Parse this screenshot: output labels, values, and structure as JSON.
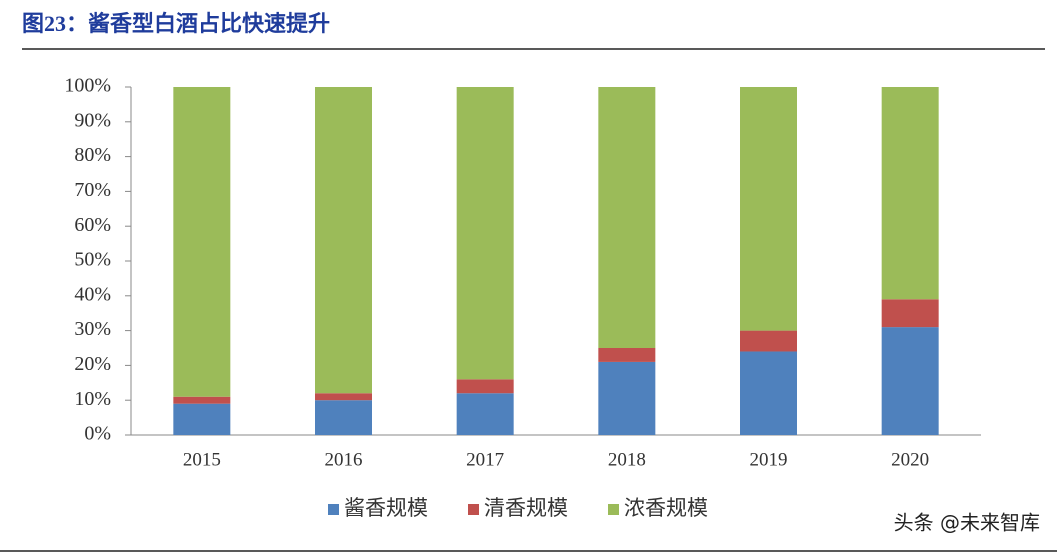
{
  "chart_data": {
    "type": "stacked_bar",
    "title": "图23：酱香型白酒占比快速提升",
    "categories": [
      "2015",
      "2016",
      "2017",
      "2018",
      "2019",
      "2020"
    ],
    "series": [
      {
        "name": "酱香规模",
        "color": "#4f81bd",
        "values": [
          9,
          10,
          12,
          21,
          24,
          31
        ]
      },
      {
        "name": "清香规模",
        "color": "#c0504d",
        "values": [
          2,
          2,
          4,
          4,
          6,
          8
        ]
      },
      {
        "name": "浓香规模",
        "color": "#9bbb59",
        "values": [
          89,
          88,
          84,
          75,
          70,
          61
        ]
      }
    ],
    "ylim": [
      0,
      100
    ],
    "yticks": [
      {
        "value": 0,
        "label": "0%"
      },
      {
        "value": 10,
        "label": "10%"
      },
      {
        "value": 20,
        "label": "20%"
      },
      {
        "value": 30,
        "label": "30%"
      },
      {
        "value": 40,
        "label": "40%"
      },
      {
        "value": 50,
        "label": "50%"
      },
      {
        "value": 60,
        "label": "60%"
      },
      {
        "value": 70,
        "label": "70%"
      },
      {
        "value": 80,
        "label": "80%"
      },
      {
        "value": 90,
        "label": "90%"
      },
      {
        "value": 100,
        "label": "100%"
      }
    ],
    "legend": "bottom",
    "watermark": "头条 @未来智库"
  }
}
